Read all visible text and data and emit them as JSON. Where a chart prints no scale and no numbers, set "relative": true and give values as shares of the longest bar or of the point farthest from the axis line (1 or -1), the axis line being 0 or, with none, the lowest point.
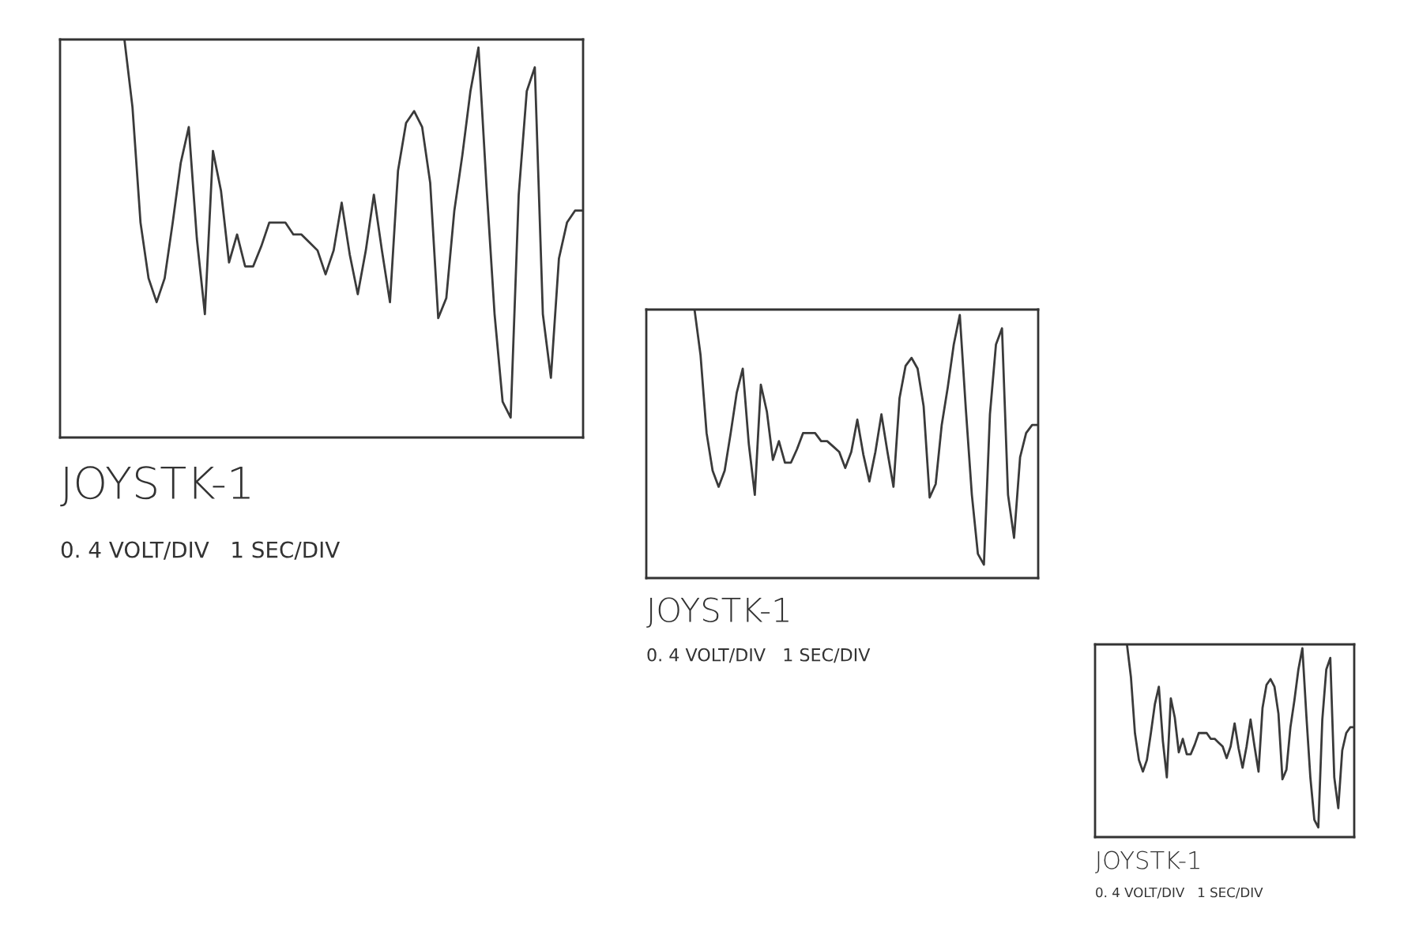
{
  "chart_data": [
    {
      "type": "line",
      "relative": true,
      "title": "JOYSTK-1",
      "annotations": [
        "0. 4 VOLT/DIV   1 SEC/DIV"
      ],
      "tick_labels": false,
      "marker": "none",
      "line_style": "solid",
      "categories": [
        null,
        null,
        null,
        null,
        null,
        null,
        null,
        null,
        null,
        null,
        null,
        null,
        null,
        null,
        null,
        null,
        null,
        null,
        null,
        null,
        null,
        null,
        null,
        null,
        null,
        null,
        null,
        null,
        null,
        null,
        null,
        null,
        null,
        null,
        null,
        null,
        null,
        null,
        null,
        null,
        null,
        null,
        null,
        null,
        null,
        null,
        null,
        null,
        null,
        null,
        null,
        null,
        null,
        null,
        null,
        null,
        null,
        null,
        null,
        null,
        null,
        null,
        null,
        null,
        null,
        null
      ],
      "series": [
        {
          "color": "#3a3a3a",
          "values": [
            null,
            null,
            null,
            null,
            null,
            null,
            null,
            null,
            1.0,
            0.83,
            0.54,
            0.4,
            0.34,
            0.4,
            0.54,
            0.69,
            0.78,
            0.5,
            0.31,
            0.72,
            0.62,
            0.44,
            0.51,
            0.43,
            0.43,
            0.48,
            0.54,
            0.54,
            0.54,
            0.51,
            0.51,
            0.49,
            0.47,
            0.41,
            0.47,
            0.59,
            0.46,
            0.36,
            0.47,
            0.61,
            0.47,
            0.34,
            0.67,
            0.79,
            0.82,
            0.78,
            0.64,
            0.3,
            0.35,
            0.57,
            0.71,
            0.87,
            0.98,
            0.63,
            0.31,
            0.09,
            0.05,
            0.61,
            0.87,
            0.93,
            0.31,
            0.15,
            0.45,
            0.54,
            0.57,
            0.57
          ]
        }
      ]
    },
    {
      "type": "line",
      "relative": true,
      "title": "JOYSTK-1",
      "annotations": [
        "0. 4 VOLT/DIV   1 SEC/DIV"
      ],
      "tick_labels": false,
      "marker": "none",
      "line_style": "solid",
      "categories": [
        null,
        null,
        null,
        null,
        null,
        null,
        null,
        null,
        null,
        null,
        null,
        null,
        null,
        null,
        null,
        null,
        null,
        null,
        null,
        null,
        null,
        null,
        null,
        null,
        null,
        null,
        null,
        null,
        null,
        null,
        null,
        null,
        null,
        null,
        null,
        null,
        null,
        null,
        null,
        null,
        null,
        null,
        null,
        null,
        null,
        null,
        null,
        null,
        null,
        null,
        null,
        null,
        null,
        null,
        null,
        null,
        null,
        null,
        null,
        null,
        null,
        null,
        null,
        null,
        null,
        null
      ],
      "series": [
        {
          "color": "#3a3a3a",
          "values": [
            null,
            null,
            null,
            null,
            null,
            null,
            null,
            null,
            1.0,
            0.83,
            0.54,
            0.4,
            0.34,
            0.4,
            0.54,
            0.69,
            0.78,
            0.5,
            0.31,
            0.72,
            0.62,
            0.44,
            0.51,
            0.43,
            0.43,
            0.48,
            0.54,
            0.54,
            0.54,
            0.51,
            0.51,
            0.49,
            0.47,
            0.41,
            0.47,
            0.59,
            0.46,
            0.36,
            0.47,
            0.61,
            0.47,
            0.34,
            0.67,
            0.79,
            0.82,
            0.78,
            0.64,
            0.3,
            0.35,
            0.57,
            0.71,
            0.87,
            0.98,
            0.63,
            0.31,
            0.09,
            0.05,
            0.61,
            0.87,
            0.93,
            0.31,
            0.15,
            0.45,
            0.54,
            0.57,
            0.57
          ]
        }
      ]
    },
    {
      "type": "line",
      "relative": true,
      "title": "JOYSTK-1",
      "annotations": [
        "0. 4 VOLT/DIV   1 SEC/DIV"
      ],
      "tick_labels": false,
      "marker": "none",
      "line_style": "solid",
      "categories": [
        null,
        null,
        null,
        null,
        null,
        null,
        null,
        null,
        null,
        null,
        null,
        null,
        null,
        null,
        null,
        null,
        null,
        null,
        null,
        null,
        null,
        null,
        null,
        null,
        null,
        null,
        null,
        null,
        null,
        null,
        null,
        null,
        null,
        null,
        null,
        null,
        null,
        null,
        null,
        null,
        null,
        null,
        null,
        null,
        null,
        null,
        null,
        null,
        null,
        null,
        null,
        null,
        null,
        null,
        null,
        null,
        null,
        null,
        null,
        null,
        null,
        null,
        null,
        null,
        null,
        null
      ],
      "series": [
        {
          "color": "#3a3a3a",
          "values": [
            null,
            null,
            null,
            null,
            null,
            null,
            null,
            null,
            1.0,
            0.83,
            0.54,
            0.4,
            0.34,
            0.4,
            0.54,
            0.69,
            0.78,
            0.5,
            0.31,
            0.72,
            0.62,
            0.44,
            0.51,
            0.43,
            0.43,
            0.48,
            0.54,
            0.54,
            0.54,
            0.51,
            0.51,
            0.49,
            0.47,
            0.41,
            0.47,
            0.59,
            0.46,
            0.36,
            0.47,
            0.61,
            0.47,
            0.34,
            0.67,
            0.79,
            0.82,
            0.78,
            0.64,
            0.3,
            0.35,
            0.57,
            0.71,
            0.87,
            0.98,
            0.63,
            0.31,
            0.09,
            0.05,
            0.61,
            0.87,
            0.93,
            0.31,
            0.15,
            0.45,
            0.54,
            0.57,
            0.57
          ]
        }
      ]
    }
  ]
}
